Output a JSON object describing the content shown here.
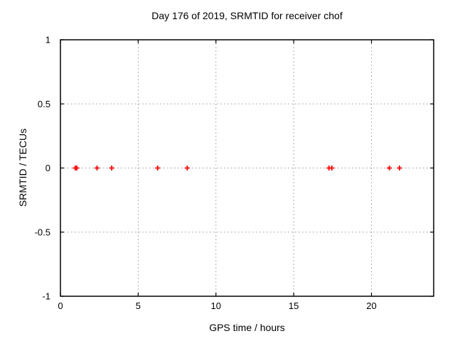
{
  "chart_data": {
    "type": "scatter",
    "title": "Day 176 of 2019, SRMTID for receiver chof",
    "xlabel": "GPS time / hours",
    "ylabel": "SRMTID / TECUs",
    "xlim": [
      0,
      24
    ],
    "ylim": [
      -1,
      1
    ],
    "grid": true,
    "grid_style": "dashed",
    "legend": "none",
    "x_ticks": [
      {
        "label": "0",
        "value": 0
      },
      {
        "label": "5",
        "value": 5
      },
      {
        "label": "10",
        "value": 10
      },
      {
        "label": "15",
        "value": 15
      },
      {
        "label": "20",
        "value": 20
      }
    ],
    "y_ticks": [
      {
        "label": "1",
        "value": 1
      },
      {
        "label": "0.5",
        "value": 0.5
      },
      {
        "label": "0",
        "value": 0
      },
      {
        "label": "-0.5",
        "value": -0.5
      },
      {
        "label": "-1",
        "value": -1
      }
    ],
    "series": [
      {
        "name": "SRMTID",
        "marker": "plus",
        "color": "#ff0000",
        "points": [
          {
            "x": 0.95,
            "y": 0
          },
          {
            "x": 1.05,
            "y": 0
          },
          {
            "x": 2.35,
            "y": 0
          },
          {
            "x": 3.3,
            "y": 0
          },
          {
            "x": 6.25,
            "y": 0
          },
          {
            "x": 8.15,
            "y": 0
          },
          {
            "x": 17.27,
            "y": 0
          },
          {
            "x": 17.45,
            "y": 0
          },
          {
            "x": 21.15,
            "y": 0
          },
          {
            "x": 21.8,
            "y": 0
          }
        ]
      }
    ],
    "colors": {
      "background": "#ffffff",
      "border": "#000000",
      "grid": "#b0b0b0",
      "text": "#000000",
      "marker": "#ff0000"
    }
  }
}
